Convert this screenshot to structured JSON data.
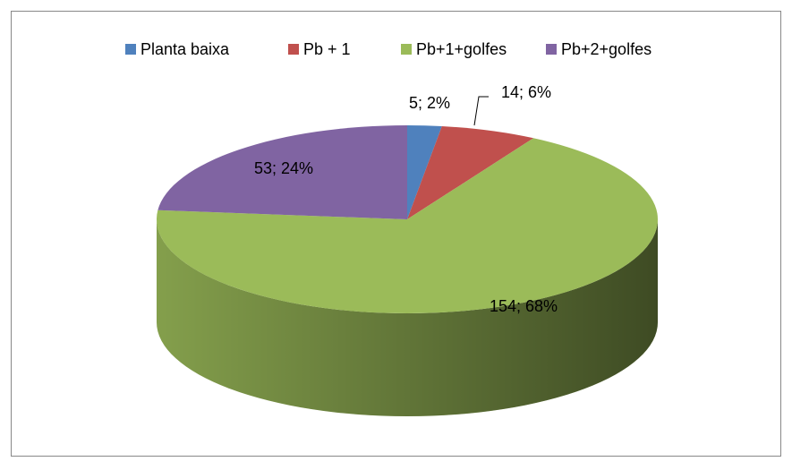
{
  "chart_data": {
    "type": "pie3d",
    "categories": [
      "Planta baixa",
      "Pb + 1",
      "Pb+1+golfes",
      "Pb+2+golfes"
    ],
    "values": [
      5,
      14,
      154,
      53
    ],
    "value_labels": [
      "5; 2%",
      "14; 6%",
      "154; 68%",
      "53; 24%"
    ],
    "colors": [
      "#4f81bd",
      "#c0504d",
      "#9bbb59",
      "#8064a2"
    ],
    "legend": "top"
  }
}
